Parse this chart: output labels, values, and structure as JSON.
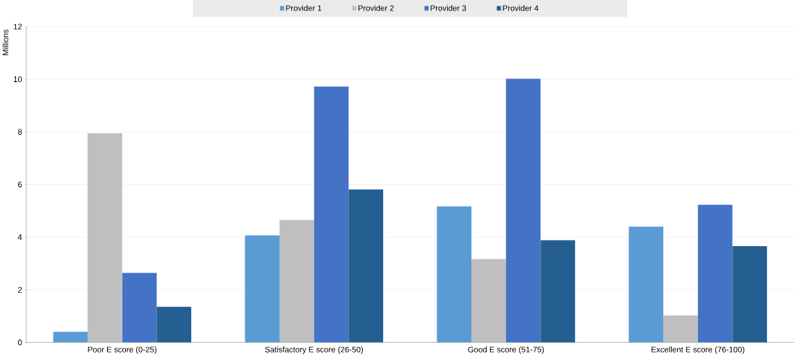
{
  "chart_data": {
    "type": "bar",
    "ylabel": "Millions",
    "categories": [
      "Poor E score (0-25)",
      "Satisfactory E score (26-50)",
      "Good E score (51-75)",
      "Excellent E score (76-100)"
    ],
    "series": [
      {
        "name": "Provider 1",
        "color": "#5b9bd5",
        "values": [
          0.4,
          4.07,
          5.17,
          4.4
        ]
      },
      {
        "name": "Provider 2",
        "color": "#bfbfbf",
        "values": [
          7.95,
          4.65,
          3.17,
          1.02
        ]
      },
      {
        "name": "Provider 3",
        "color": "#4472c4",
        "values": [
          2.64,
          9.72,
          10.02,
          5.23
        ]
      },
      {
        "name": "Provider 4",
        "color": "#255e91",
        "values": [
          1.35,
          5.81,
          3.88,
          3.66
        ]
      }
    ],
    "ylim": [
      0,
      12
    ],
    "yticks": [
      0,
      2,
      4,
      6,
      8,
      10,
      12
    ],
    "grid": "y",
    "legend": "top"
  }
}
